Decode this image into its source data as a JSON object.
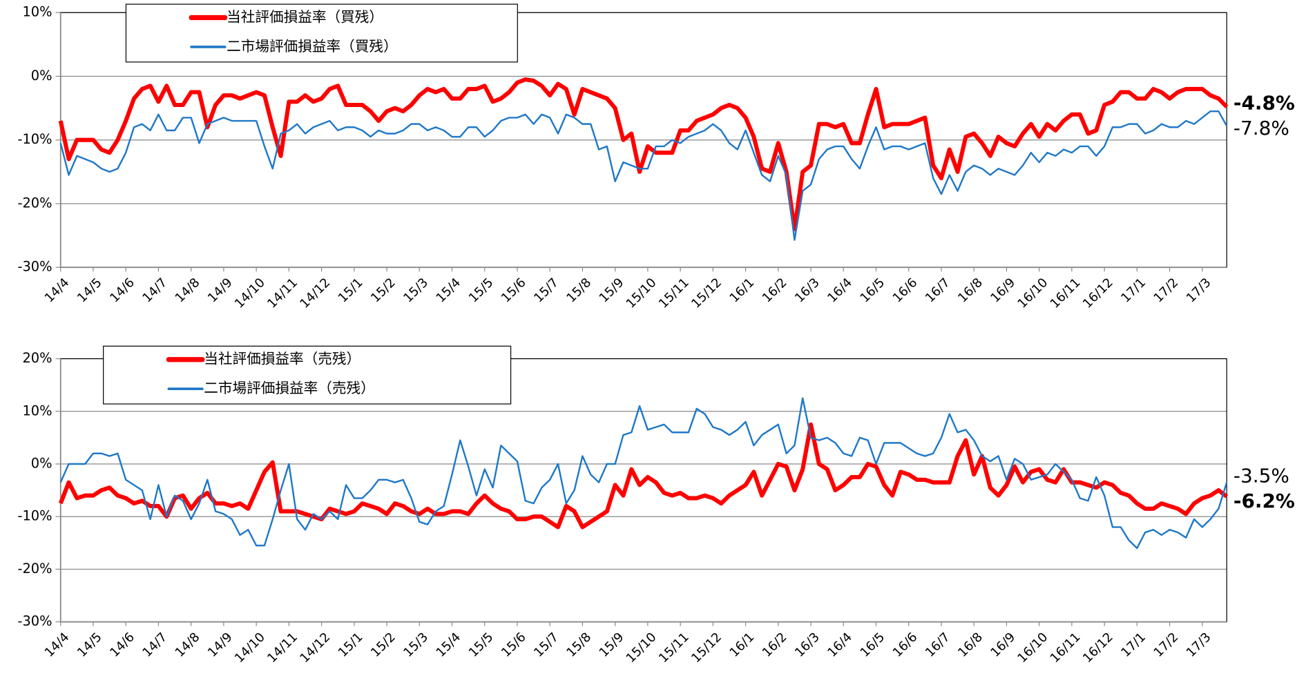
{
  "chart_data": [
    {
      "type": "line",
      "ylim": [
        -30,
        10
      ],
      "yticks": [
        {
          "value": -30,
          "label": "-30%"
        },
        {
          "value": -20,
          "label": "-20%"
        },
        {
          "value": -10,
          "label": "-10%"
        },
        {
          "value": 0,
          "label": "0%"
        },
        {
          "value": 10,
          "label": "10%"
        }
      ],
      "grid": true,
      "legend": "upper left",
      "categories": [
        "14/4",
        null,
        null,
        null,
        "14/5",
        null,
        null,
        null,
        "14/6",
        null,
        null,
        null,
        "14/7",
        null,
        null,
        null,
        "14/8",
        null,
        null,
        null,
        "14/9",
        null,
        null,
        null,
        "14/10",
        null,
        null,
        null,
        "14/11",
        null,
        null,
        null,
        "14/12",
        null,
        null,
        null,
        "15/1",
        null,
        null,
        null,
        "15/2",
        null,
        null,
        null,
        "15/3",
        null,
        null,
        null,
        "15/4",
        null,
        null,
        null,
        "15/5",
        null,
        null,
        null,
        "15/6",
        null,
        null,
        null,
        "15/7",
        null,
        null,
        null,
        "15/8",
        null,
        null,
        null,
        "15/9",
        null,
        null,
        null,
        "15/10",
        null,
        null,
        null,
        "15/11",
        null,
        null,
        null,
        "15/12",
        null,
        null,
        null,
        "16/1",
        null,
        null,
        null,
        "16/2",
        null,
        null,
        null,
        "16/3",
        null,
        null,
        null,
        "16/4",
        null,
        null,
        null,
        "16/5",
        null,
        null,
        null,
        "16/6",
        null,
        null,
        null,
        "16/7",
        null,
        null,
        null,
        "16/8",
        null,
        null,
        null,
        "16/9",
        null,
        null,
        null,
        "16/10",
        null,
        null,
        null,
        "16/11",
        null,
        null,
        null,
        "16/12",
        null,
        null,
        null,
        "17/1",
        null,
        null,
        null,
        "17/2",
        null,
        null,
        null,
        "17/3",
        null,
        null,
        null
      ],
      "series": [
        {
          "name": "当社評価損益率（買残）",
          "color": "#ff0000",
          "width": 5,
          "end_label": "-4.8%",
          "end_color": "#ff0000",
          "values": [
            -7,
            -13,
            -10,
            -10,
            -10,
            -11.5,
            -12,
            -10,
            -7,
            -3.5,
            -2,
            -1.5,
            -4,
            -1.5,
            -4.5,
            -4.5,
            -2.5,
            -2.5,
            -8,
            -4.5,
            -3,
            -3,
            -3.5,
            -3,
            -2.5,
            -3,
            -8,
            -12.5,
            -4,
            -4,
            -3,
            -4,
            -3.5,
            -2,
            -1.5,
            -4.5,
            -4.5,
            -4.5,
            -5.5,
            -7,
            -5.5,
            -5,
            -5.5,
            -4.5,
            -3,
            -2,
            -2.5,
            -2,
            -3.5,
            -3.5,
            -2,
            -2,
            -1.5,
            -4,
            -3.5,
            -2.5,
            -1,
            -0.5,
            -0.7,
            -1.5,
            -3,
            -1.2,
            -2,
            -6,
            -2,
            -2.5,
            -3,
            -3.5,
            -5,
            -10,
            -9,
            -15,
            -11,
            -12,
            -12,
            -12,
            -8.5,
            -8.5,
            -7,
            -6.5,
            -6,
            -5,
            -4.5,
            -5,
            -6.5,
            -9.5,
            -14.5,
            -15,
            -10.5,
            -15,
            -24,
            -15,
            -14,
            -7.5,
            -7.5,
            -8,
            -7.5,
            -10.5,
            -10.5,
            -6,
            -2,
            -8,
            -7.5,
            -7.5,
            -7.5,
            -7,
            -6.5,
            -14,
            -16,
            -11.5,
            -15,
            -9.5,
            -9,
            -10.5,
            -12.5,
            -9.5,
            -10.5,
            -11,
            -9,
            -7.5,
            -9.5,
            -7.5,
            -8.5,
            -7,
            -6,
            -6,
            -9,
            -8.5,
            -4.5,
            -4,
            -2.5,
            -2.5,
            -3.5,
            -3.5,
            -2,
            -2.5,
            -3.5,
            -2.5,
            -2,
            -2,
            -2,
            -3,
            -3.5,
            -4.8
          ]
        },
        {
          "name": "二市場評価損益率（買残）",
          "color": "#1f78c8",
          "width": 2,
          "end_label": "-7.8%",
          "end_color": "#2f4f8f",
          "values": [
            -10.5,
            -15.5,
            -12.5,
            -13,
            -13.5,
            -14.5,
            -15,
            -14.5,
            -12,
            -8,
            -7.5,
            -8.5,
            -6,
            -8.5,
            -8.5,
            -6.5,
            -6.5,
            -10.5,
            -7.5,
            -7,
            -6.5,
            -7,
            -7,
            -7,
            -7,
            -11,
            -14.5,
            -9,
            -8.5,
            -7.5,
            -9,
            -8,
            -7.5,
            -7,
            -8.5,
            -8,
            -8,
            -8.5,
            -9.5,
            -8.5,
            -9,
            -9,
            -8.5,
            -7.5,
            -7.5,
            -8.5,
            -8,
            -8.5,
            -9.5,
            -9.5,
            -8,
            -8,
            -9.5,
            -8.5,
            -7,
            -6.5,
            -6.5,
            -6,
            -7.5,
            -6,
            -6.5,
            -9,
            -6,
            -6.5,
            -7.5,
            -7.5,
            -11.5,
            -11,
            -16.5,
            -13.5,
            -14,
            -14.5,
            -14.5,
            -11,
            -11,
            -10,
            -10.5,
            -9.5,
            -9,
            -8.5,
            -7.5,
            -8.5,
            -10.5,
            -11.5,
            -8.5,
            -12,
            -15.5,
            -16.5,
            -12.5,
            -15.5,
            -25.7,
            -18,
            -17,
            -13,
            -11.5,
            -11,
            -11,
            -13,
            -14.5,
            -11,
            -8,
            -11.5,
            -11,
            -11,
            -11.5,
            -11,
            -10.5,
            -16,
            -18.5,
            -15.5,
            -18,
            -15,
            -14,
            -14.5,
            -15.5,
            -14.5,
            -15,
            -15.5,
            -14,
            -12,
            -13.5,
            -12,
            -12.5,
            -11.5,
            -12,
            -11,
            -11,
            -12.5,
            -11,
            -8,
            -8,
            -7.5,
            -7.5,
            -9,
            -8.5,
            -7.5,
            -8,
            -8,
            -7,
            -7.5,
            -6.5,
            -5.5,
            -5.5,
            -7.8
          ]
        }
      ]
    },
    {
      "type": "line",
      "ylim": [
        -30,
        20
      ],
      "yticks": [
        {
          "value": -30,
          "label": "-30%"
        },
        {
          "value": -20,
          "label": "-20%"
        },
        {
          "value": -10,
          "label": "-10%"
        },
        {
          "value": 0,
          "label": "0%"
        },
        {
          "value": 10,
          "label": "10%"
        },
        {
          "value": 20,
          "label": "20%"
        }
      ],
      "grid": true,
      "legend": "upper left",
      "categories": [
        "14/4",
        null,
        null,
        null,
        "14/5",
        null,
        null,
        null,
        "14/6",
        null,
        null,
        null,
        "14/7",
        null,
        null,
        null,
        "14/8",
        null,
        null,
        null,
        "14/9",
        null,
        null,
        null,
        "14/10",
        null,
        null,
        null,
        "14/11",
        null,
        null,
        null,
        "14/12",
        null,
        null,
        null,
        "15/1",
        null,
        null,
        null,
        "15/2",
        null,
        null,
        null,
        "15/3",
        null,
        null,
        null,
        "15/4",
        null,
        null,
        null,
        "15/5",
        null,
        null,
        null,
        "15/6",
        null,
        null,
        null,
        "15/7",
        null,
        null,
        null,
        "15/8",
        null,
        null,
        null,
        "15/9",
        null,
        null,
        null,
        "15/10",
        null,
        null,
        null,
        "15/11",
        null,
        null,
        null,
        "15/12",
        null,
        null,
        null,
        "16/1",
        null,
        null,
        null,
        "16/2",
        null,
        null,
        null,
        "16/3",
        null,
        null,
        null,
        "16/4",
        null,
        null,
        null,
        "16/5",
        null,
        null,
        null,
        "16/6",
        null,
        null,
        null,
        "16/7",
        null,
        null,
        null,
        "16/8",
        null,
        null,
        null,
        "16/9",
        null,
        null,
        null,
        "16/10",
        null,
        null,
        null,
        "16/11",
        null,
        null,
        null,
        "16/12",
        null,
        null,
        null,
        "17/1",
        null,
        null,
        null,
        "17/2",
        null,
        null,
        null,
        "17/3",
        null,
        null,
        null
      ],
      "series": [
        {
          "name": "当社評価損益率（売残）",
          "color": "#ff0000",
          "width": 5,
          "end_label": "-6.2%",
          "end_color": "#ff0000",
          "values": [
            -7.5,
            -3.5,
            -6.5,
            -6,
            -6,
            -5,
            -4.5,
            -6,
            -6.5,
            -7.5,
            -7,
            -8,
            -8,
            -10,
            -6.5,
            -6,
            -8.5,
            -6.5,
            -5.5,
            -7.5,
            -7.5,
            -8,
            -7.5,
            -8.5,
            -5,
            -1.5,
            0.3,
            -9,
            -9,
            -9,
            -9.5,
            -10,
            -10.5,
            -8.5,
            -9,
            -9.5,
            -9,
            -7.5,
            -8,
            -8.5,
            -9.5,
            -7.5,
            -8,
            -9,
            -9.5,
            -8.5,
            -9.5,
            -9.5,
            -9,
            -9,
            -9.5,
            -7.5,
            -6,
            -7.5,
            -8.5,
            -9,
            -10.5,
            -10.5,
            -10,
            -10,
            -11,
            -12,
            -8,
            -9,
            -12,
            -11,
            -10,
            -9,
            -4,
            -6,
            -1,
            -4,
            -2.5,
            -3.5,
            -5.5,
            -6,
            -5.5,
            -6.5,
            -6.5,
            -6,
            -6.5,
            -7.5,
            -6,
            -5,
            -4,
            -1.5,
            -6,
            -3,
            0,
            -0.5,
            -5,
            -1,
            7.5,
            0,
            -1,
            -5,
            -4,
            -2.5,
            -2.5,
            0,
            -0.5,
            -4,
            -6,
            -1.5,
            -2,
            -3,
            -3,
            -3.5,
            -3.5,
            -3.5,
            1.5,
            4.5,
            -2,
            1.5,
            -4.5,
            -6,
            -4,
            -0.5,
            -3.5,
            -1.5,
            -1,
            -3,
            -3.5,
            -1,
            -3.5,
            -3.5,
            -4,
            -4.5,
            -3.5,
            -4,
            -5.5,
            -6,
            -7.5,
            -8.5,
            -8.5,
            -7.5,
            -8,
            -8.5,
            -9.5,
            -7.5,
            -6.5,
            -6,
            -5,
            -6.2
          ]
        },
        {
          "name": "二市場評価損益率（売残）",
          "color": "#1f78c8",
          "width": 2,
          "end_label": "-3.5%",
          "end_color": "#2f4f8f",
          "values": [
            -3.5,
            0,
            0,
            0,
            2,
            2,
            1.5,
            2,
            -3,
            -4,
            -5,
            -10.5,
            -4,
            -10,
            -6,
            -7,
            -10.5,
            -7.5,
            -3,
            -9,
            -9.5,
            -10.5,
            -13.5,
            -12.5,
            -15.5,
            -15.5,
            -10.5,
            -5,
            0,
            -10.5,
            -12.5,
            -9.5,
            -10.5,
            -9,
            -10.5,
            -4,
            -6.5,
            -6.5,
            -5,
            -3,
            -3,
            -3.5,
            -3,
            -6.5,
            -11,
            -11.5,
            -9,
            -8,
            -2,
            4.5,
            -0.5,
            -6,
            -1,
            -4.5,
            3.5,
            2,
            0.5,
            -7,
            -7.5,
            -4.5,
            -3,
            0,
            -7.5,
            -5,
            1.5,
            -2,
            -3.5,
            0,
            0,
            5.5,
            6,
            11,
            6.5,
            7,
            7.5,
            6,
            6,
            6,
            10.5,
            9.5,
            7,
            6.5,
            5.5,
            6.5,
            8,
            3.5,
            5.5,
            6.5,
            7.5,
            2,
            3.5,
            12.5,
            5,
            4.5,
            5,
            4,
            2,
            1.5,
            5,
            4.5,
            0,
            4,
            4,
            4,
            3,
            2,
            1.5,
            2,
            5,
            9.5,
            6,
            6.5,
            4.5,
            1.5,
            0.5,
            1.5,
            -3,
            1,
            0,
            -3,
            -2.5,
            -2,
            0,
            -1.5,
            -3,
            -6.5,
            -7,
            -2.5,
            -6,
            -12,
            -12,
            -14.5,
            -16,
            -13,
            -12.5,
            -13.5,
            -12.5,
            -13,
            -14,
            -10.5,
            -12,
            -10.5,
            -8.5,
            -3.5
          ]
        }
      ]
    }
  ]
}
